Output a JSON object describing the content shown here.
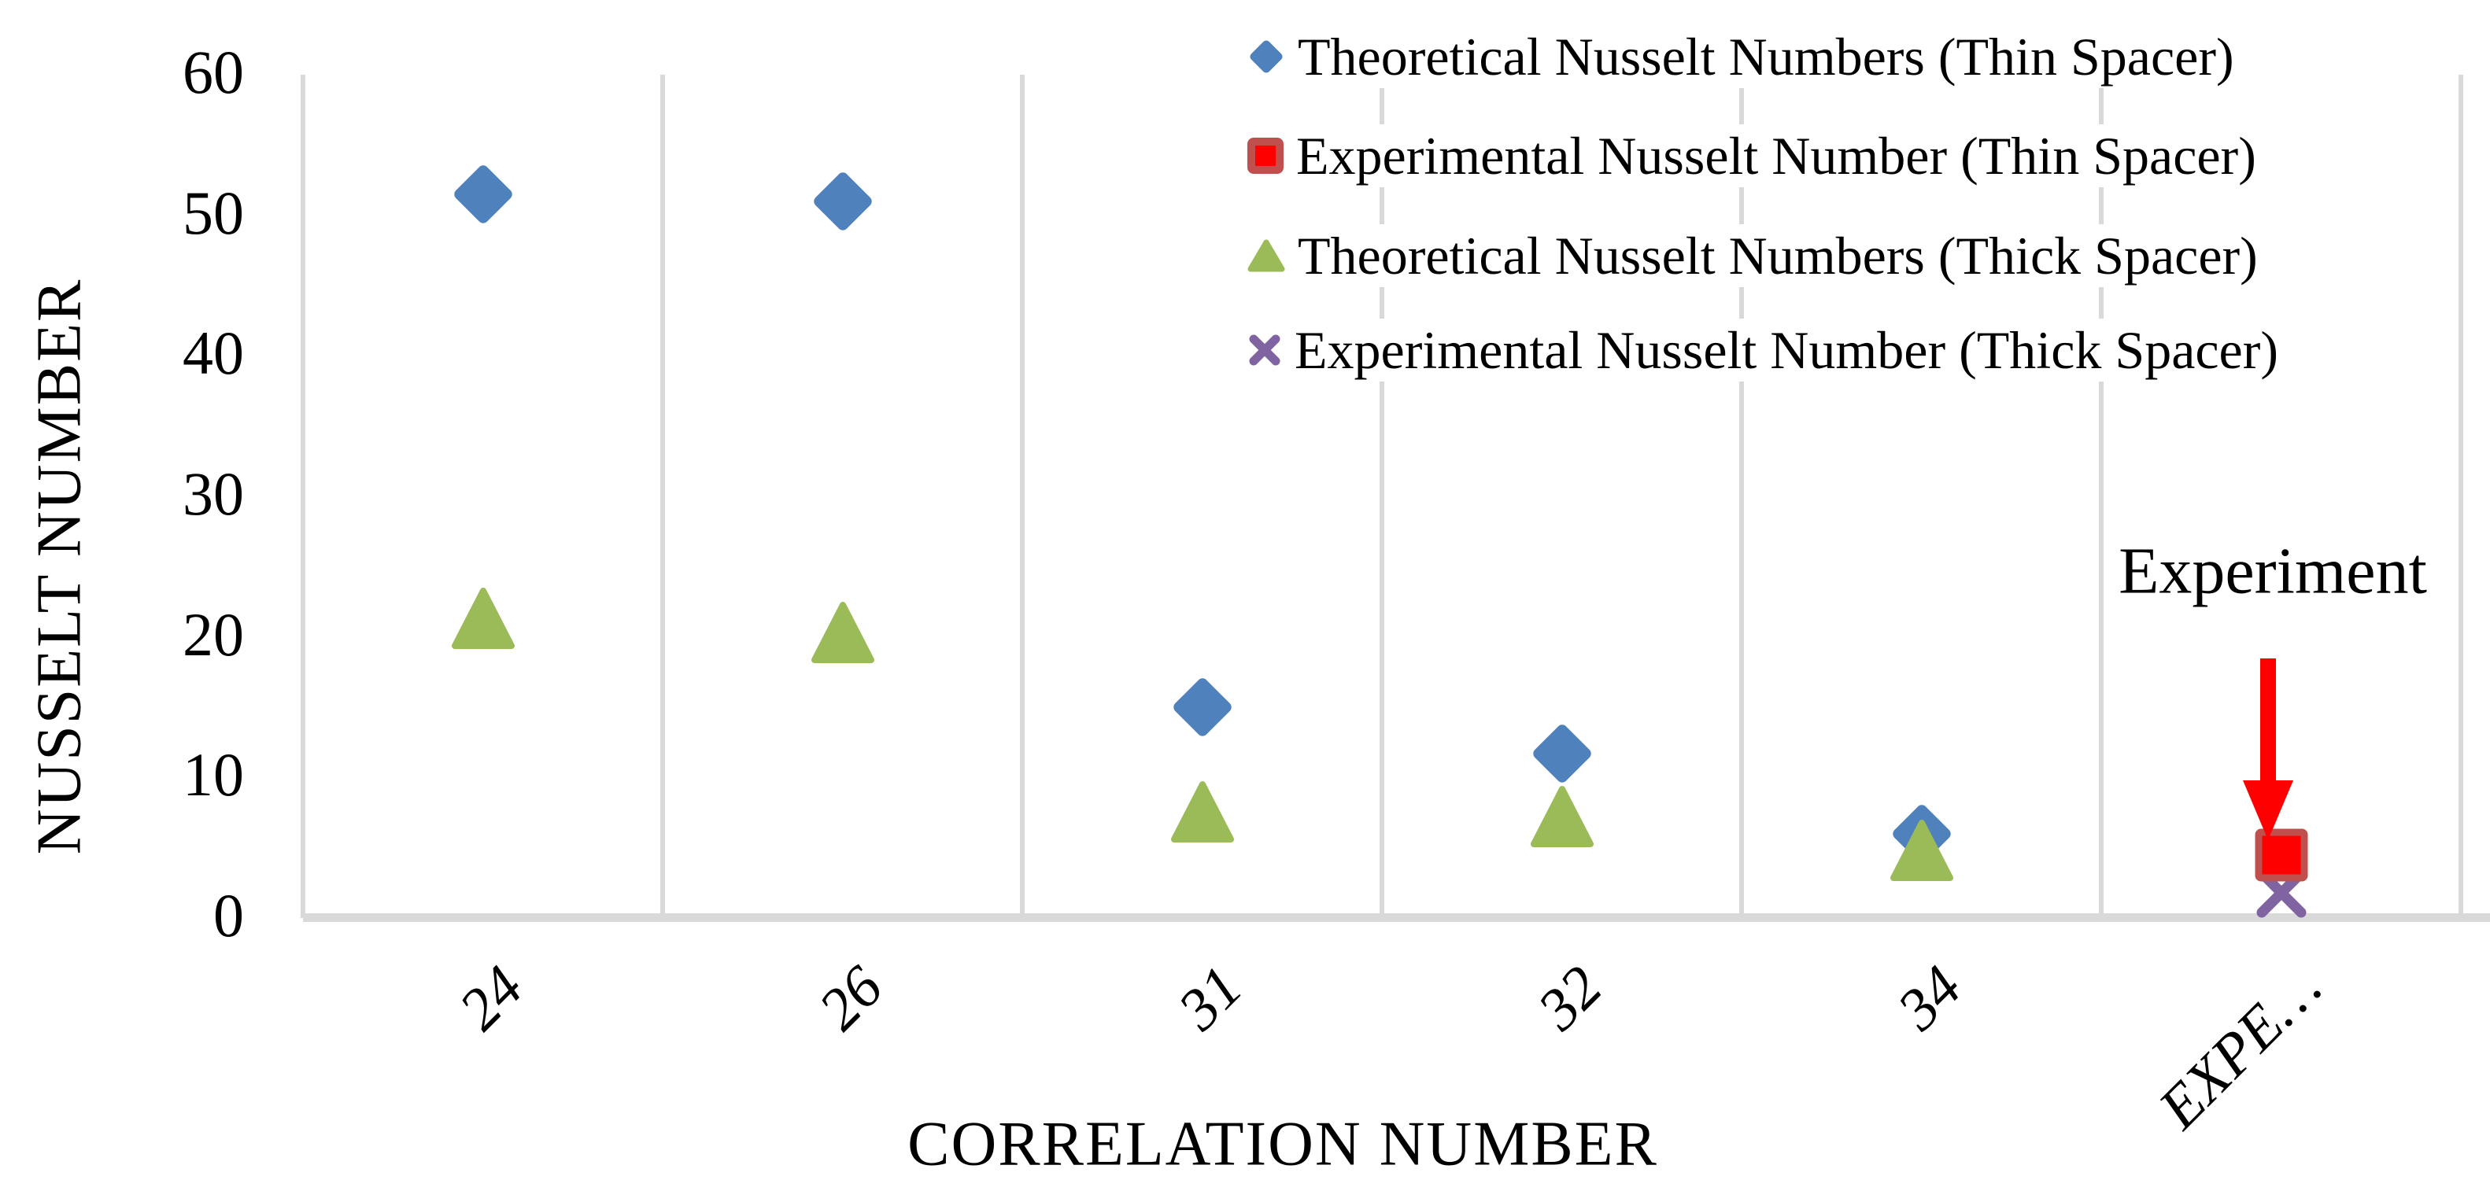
{
  "chart_data": {
    "type": "scatter",
    "xlabel": "CORRELATION NUMBER",
    "ylabel": "NUSSELT NUMBER",
    "categories": [
      "24",
      "26",
      "31",
      "32",
      "34",
      "EXPE…"
    ],
    "ylim": [
      0,
      60
    ],
    "y_ticks": [
      0,
      10,
      20,
      30,
      40,
      50,
      60
    ],
    "grid": "vertical-major-only",
    "legend_position": "top-right",
    "gridline_color": "#D9D9D9",
    "series": [
      {
        "name": "Theoretical Nusselt Numbers (Thin Spacer)",
        "marker": "diamond",
        "color": "#4F81BD",
        "points": [
          {
            "cat": 0,
            "value": 51.5
          },
          {
            "cat": 1,
            "value": 51
          },
          {
            "cat": 2,
            "value": 15
          },
          {
            "cat": 3,
            "value": 11.7
          },
          {
            "cat": 4,
            "value": 6
          }
        ]
      },
      {
        "name": "Experimental Nusselt Number (Thin Spacer)",
        "marker": "square",
        "color": "#FE0000",
        "border_color": "#C0504D",
        "points": [
          {
            "cat": 5,
            "value": 4.5
          }
        ]
      },
      {
        "name": "Theoretical Nusselt Numbers (Thick Spacer)",
        "marker": "triangle",
        "color": "#9BBB59",
        "points": [
          {
            "cat": 0,
            "value": 21.5
          },
          {
            "cat": 1,
            "value": 20.5
          },
          {
            "cat": 2,
            "value": 7.7
          },
          {
            "cat": 3,
            "value": 7.4
          },
          {
            "cat": 4,
            "value": 5
          }
        ]
      },
      {
        "name": "Experimental Nusselt Number (Thick Spacer)",
        "marker": "x",
        "color": "#8064A2",
        "points": [
          {
            "cat": 5,
            "value": 1.8
          }
        ]
      }
    ],
    "annotation": {
      "text": "Experiment",
      "arrow_color": "#FE0000",
      "arrow_direction": "down"
    }
  },
  "axis_titles": {
    "y": "NUSSELT NUMBER",
    "x": "CORRELATION NUMBER"
  }
}
